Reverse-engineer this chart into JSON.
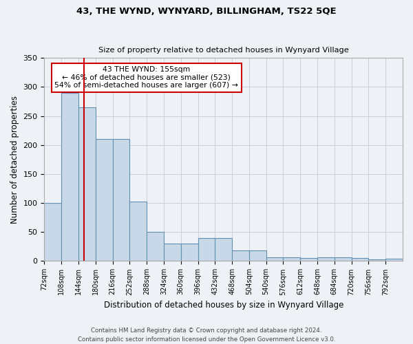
{
  "title1": "43, THE WYND, WYNYARD, BILLINGHAM, TS22 5QE",
  "title2": "Size of property relative to detached houses in Wynyard Village",
  "xlabel": "Distribution of detached houses by size in Wynyard Village",
  "ylabel": "Number of detached properties",
  "footer1": "Contains HM Land Registry data © Crown copyright and database right 2024.",
  "footer2": "Contains public sector information licensed under the Open Government Licence v3.0.",
  "bin_edges": [
    72,
    108,
    144,
    180,
    216,
    252,
    288,
    324,
    360,
    396,
    432,
    468,
    504,
    540,
    576,
    612,
    648,
    684,
    720,
    756,
    792
  ],
  "bar_heights": [
    100,
    290,
    265,
    210,
    210,
    103,
    50,
    30,
    30,
    40,
    40,
    18,
    18,
    7,
    6,
    5,
    7,
    7,
    5,
    3,
    4
  ],
  "bar_color": "#c8d8e8",
  "bar_edge_color": "#6090b0",
  "red_line_x": 155,
  "red_line_color": "#cc0000",
  "annotation_text": "43 THE WYND: 155sqm\n← 46% of detached houses are smaller (523)\n54% of semi-detached houses are larger (607) →",
  "annotation_box_color": "white",
  "annotation_box_edge": "#cc0000",
  "bg_color": "#eef2f7",
  "grid_color": "#c8d0dc",
  "ylim": [
    0,
    350
  ],
  "yticks": [
    0,
    50,
    100,
    150,
    200,
    250,
    300,
    350
  ]
}
